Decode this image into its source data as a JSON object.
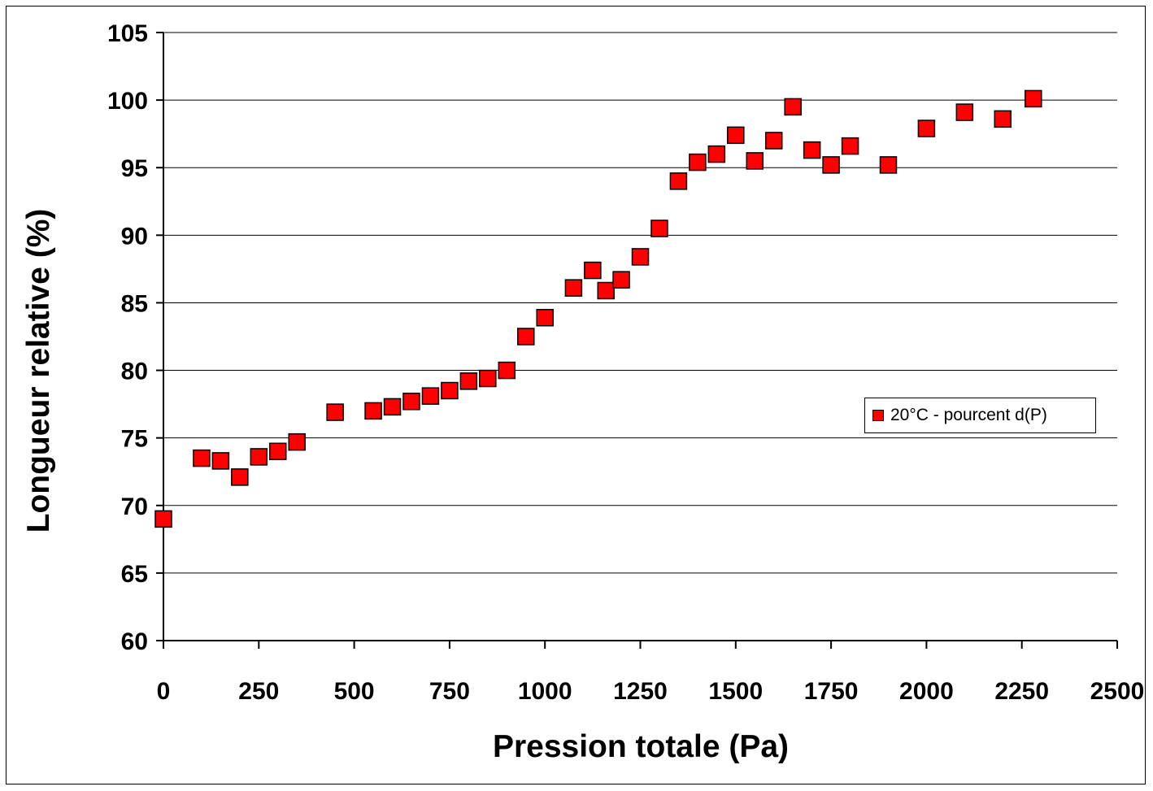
{
  "chart_data": {
    "type": "scatter",
    "title": "",
    "xlabel": "Pression totale (Pa)",
    "ylabel": "Longueur relative (%)",
    "xlim": [
      0,
      2500
    ],
    "ylim": [
      60,
      105
    ],
    "x_ticks": [
      "0",
      "250",
      "500",
      "750",
      "1000",
      "1250",
      "1500",
      "1750",
      "2000",
      "2250",
      "2500"
    ],
    "y_ticks": [
      "60",
      "65",
      "70",
      "75",
      "80",
      "85",
      "90",
      "95",
      "100",
      "105"
    ],
    "grid": "horizontal",
    "legend_position": "right",
    "marker": "square",
    "marker_color": "#ff0000",
    "series": [
      {
        "name": "20°C - pourcent d(P)",
        "points": [
          [
            0,
            69.0
          ],
          [
            100,
            73.5
          ],
          [
            150,
            73.3
          ],
          [
            200,
            72.1
          ],
          [
            250,
            73.6
          ],
          [
            300,
            74.0
          ],
          [
            350,
            74.7
          ],
          [
            450,
            76.9
          ],
          [
            550,
            77.0
          ],
          [
            600,
            77.3
          ],
          [
            650,
            77.7
          ],
          [
            700,
            78.1
          ],
          [
            750,
            78.5
          ],
          [
            800,
            79.2
          ],
          [
            850,
            79.4
          ],
          [
            900,
            80.0
          ],
          [
            950,
            82.5
          ],
          [
            1000,
            83.9
          ],
          [
            1075,
            86.1
          ],
          [
            1125,
            87.4
          ],
          [
            1160,
            85.9
          ],
          [
            1200,
            86.7
          ],
          [
            1250,
            88.4
          ],
          [
            1300,
            90.5
          ],
          [
            1350,
            94.0
          ],
          [
            1400,
            95.4
          ],
          [
            1450,
            96.0
          ],
          [
            1500,
            97.4
          ],
          [
            1550,
            95.5
          ],
          [
            1600,
            97.0
          ],
          [
            1650,
            99.5
          ],
          [
            1700,
            96.3
          ],
          [
            1750,
            95.2
          ],
          [
            1800,
            96.6
          ],
          [
            1900,
            95.2
          ],
          [
            2000,
            97.9
          ],
          [
            2100,
            99.1
          ],
          [
            2200,
            98.6
          ],
          [
            2280,
            100.1
          ]
        ]
      }
    ]
  }
}
